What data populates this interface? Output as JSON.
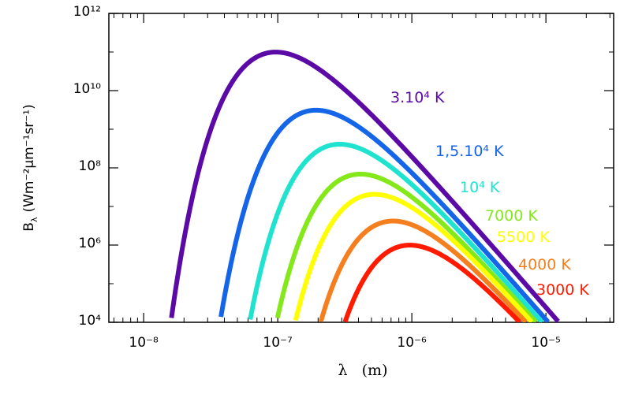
{
  "chart_data": {
    "type": "line",
    "title": "",
    "xlabel": "λ   (m)",
    "ylabel": {
      "text": "B",
      "subscript": "λ",
      "units_html": "(Wm⁻²μm⁻¹sr⁻¹)"
    },
    "x_scale": "log",
    "y_scale": "log",
    "xlim": [
      5.5e-09,
      3.2e-05
    ],
    "ylim": [
      10000,
      1000000000000
    ],
    "x_ticks": [
      {
        "value": 1e-08,
        "label": "10⁻⁸"
      },
      {
        "value": 1e-07,
        "label": "10⁻⁷"
      },
      {
        "value": 1e-06,
        "label": "10⁻⁶"
      },
      {
        "value": 1e-05,
        "label": "10⁻⁵"
      }
    ],
    "y_ticks": [
      {
        "value": 10000,
        "label": "10⁴"
      },
      {
        "value": 1000000,
        "label": "10⁶"
      },
      {
        "value": 100000000,
        "label": "10⁸"
      },
      {
        "value": 10000000000,
        "label": "10¹⁰"
      },
      {
        "value": 1000000000000,
        "label": "10¹²"
      }
    ],
    "grid": false,
    "curve_model": "planck",
    "x_units": "m",
    "y_units": "W m^-2 um^-1 sr^-1",
    "series": [
      {
        "name": "3.10⁴ K",
        "temperature": 30000,
        "color": "#5b0aa6"
      },
      {
        "name": "1,5.10⁴ K",
        "temperature": 15000,
        "color": "#1565e8"
      },
      {
        "name": "10⁴ K",
        "temperature": 10000,
        "color": "#20e3cf"
      },
      {
        "name": "7000 K",
        "temperature": 7000,
        "color": "#84e81a"
      },
      {
        "name": "5500 K",
        "temperature": 5500,
        "color": "#ffff00"
      },
      {
        "name": "4000 K",
        "temperature": 4000,
        "color": "#f57f1e"
      },
      {
        "name": "3000 K",
        "temperature": 3000,
        "color": "#ff1a00"
      }
    ]
  }
}
